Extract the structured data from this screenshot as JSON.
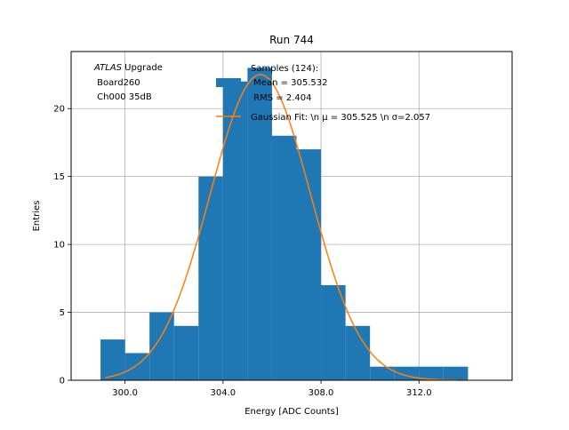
{
  "chart_data": {
    "type": "bar",
    "title": "Run 744",
    "xlabel": "Energy [ADC Counts]",
    "ylabel": "Entries",
    "xlim": [
      297.8,
      315.8
    ],
    "ylim": [
      0,
      24.2
    ],
    "xticks": [
      300.0,
      304.0,
      308.0,
      312.0
    ],
    "xtick_labels": [
      "300.0",
      "304.0",
      "308.0",
      "312.0"
    ],
    "yticks": [
      0,
      5,
      10,
      15,
      20
    ],
    "ytick_labels": [
      "0",
      "5",
      "10",
      "15",
      "20"
    ],
    "grid": true,
    "bar_color": "#1f77b4",
    "fit_color": "#ff7f0e",
    "bins": [
      {
        "x0": 299.0,
        "x1": 300.0,
        "value": 3
      },
      {
        "x0": 300.0,
        "x1": 301.0,
        "value": 2
      },
      {
        "x0": 301.0,
        "x1": 302.0,
        "value": 5
      },
      {
        "x0": 302.0,
        "x1": 303.0,
        "value": 4
      },
      {
        "x0": 303.0,
        "x1": 304.0,
        "value": 15
      },
      {
        "x0": 304.0,
        "x1": 305.0,
        "value": 22
      },
      {
        "x0": 305.0,
        "x1": 306.0,
        "value": 23
      },
      {
        "x0": 306.0,
        "x1": 307.0,
        "value": 18
      },
      {
        "x0": 307.0,
        "x1": 308.0,
        "value": 17
      },
      {
        "x0": 308.0,
        "x1": 309.0,
        "value": 7
      },
      {
        "x0": 309.0,
        "x1": 310.0,
        "value": 4
      },
      {
        "x0": 310.0,
        "x1": 311.0,
        "value": 1
      },
      {
        "x0": 311.0,
        "x1": 312.0,
        "value": 1
      },
      {
        "x0": 312.0,
        "x1": 313.0,
        "value": 1
      },
      {
        "x0": 313.0,
        "x1": 314.0,
        "value": 1
      }
    ],
    "fit": {
      "mu": 305.525,
      "sigma": 2.057,
      "amplitude": 22.5,
      "x_range": [
        299.2,
        314.0
      ]
    },
    "legend": {
      "location": "upper-right",
      "entries": [
        {
          "kind": "patch",
          "lines": [
            "Samples (124):",
            " Mean = 305.532",
            " RMS = 2.404"
          ]
        },
        {
          "kind": "line",
          "lines": [
            "Gaussian Fit: \\n μ = 305.525 \\n σ=2.057"
          ]
        }
      ]
    },
    "annotation": {
      "italic": "ATLAS",
      "rest": " Upgrade",
      "lines": [
        " Board260",
        " Ch000 35dB"
      ]
    }
  }
}
